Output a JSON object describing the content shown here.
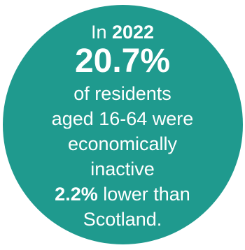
{
  "infographic": {
    "line1_prefix": "In",
    "line1_year": "2022",
    "headline_value": "20.7%",
    "line3": "of residents",
    "line4": "aged 16-64 were",
    "line5": "economically",
    "line6": "inactive",
    "comparison_value": "2.2%",
    "comparison_text": "lower than",
    "line8": "Scotland.",
    "background_color": "#1f9a8e",
    "text_color": "#ffffff"
  }
}
